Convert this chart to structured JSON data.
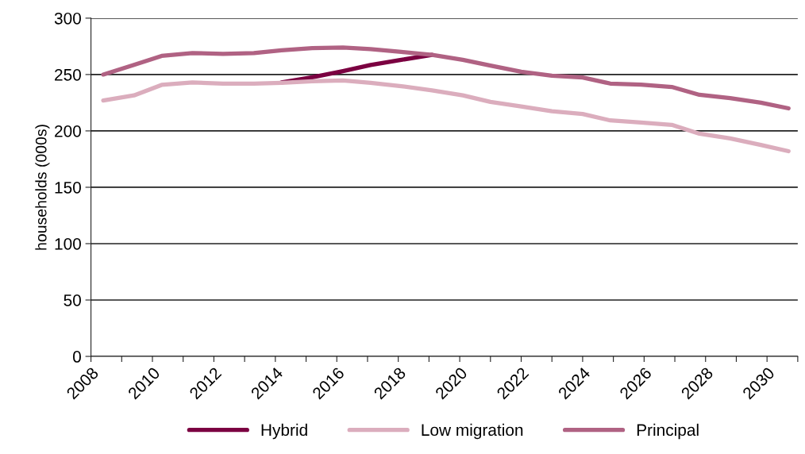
{
  "chart_data": {
    "type": "line",
    "ylabel": "households (000s)",
    "x": [
      2008.4,
      2009.4,
      2010.3,
      2011.3,
      2012.3,
      2013.3,
      2014.2,
      2015.2,
      2016.2,
      2017.1,
      2018.1,
      2019.1,
      2020.1,
      2021.0,
      2022.0,
      2023.0,
      2024.0,
      2024.9,
      2025.9,
      2026.9,
      2027.8,
      2028.8,
      2029.8,
      2030.7
    ],
    "series": [
      {
        "name": "Hybrid",
        "color": "#7b0041",
        "values": [
          null,
          null,
          null,
          null,
          null,
          null,
          243,
          247.5,
          253,
          258.5,
          263,
          267.5,
          null,
          null,
          null,
          null,
          null,
          null,
          null,
          null,
          null,
          null,
          null,
          null
        ]
      },
      {
        "name": "Low migration",
        "color": "#dbadbd",
        "values": [
          227,
          231.5,
          240.8,
          243,
          242,
          242,
          242.7,
          244,
          244.7,
          242.7,
          239.7,
          236,
          231.5,
          225.7,
          221.7,
          217.5,
          215,
          209.3,
          207.5,
          205.4,
          197.5,
          193.3,
          187.5,
          182
        ]
      },
      {
        "name": "Principal",
        "color": "#b06283",
        "values": [
          250,
          258.5,
          266.5,
          269,
          268.4,
          269,
          271.5,
          273.5,
          274,
          272.5,
          270,
          267.5,
          263,
          258,
          252.5,
          249,
          247.4,
          242,
          241,
          239,
          232,
          229,
          225,
          220
        ]
      }
    ],
    "xlim": [
      2008,
      2031
    ],
    "xticks": [
      2008,
      {
        "value": 2009,
        "label": null
      },
      2010,
      {
        "value": 2011,
        "label": null
      },
      2012,
      {
        "value": 2013,
        "label": null
      },
      2014,
      {
        "value": 2015,
        "label": null
      },
      2016,
      {
        "value": 2017,
        "label": null
      },
      2018,
      {
        "value": 2019,
        "label": null
      },
      2020,
      {
        "value": 2021,
        "label": null
      },
      2022,
      {
        "value": 2023,
        "label": null
      },
      2024,
      {
        "value": 2025,
        "label": null
      },
      2026,
      {
        "value": 2027,
        "label": null
      },
      2028,
      {
        "value": 2029,
        "label": null
      },
      2030,
      {
        "value": 2031,
        "label": null
      }
    ],
    "ylim": [
      0,
      300
    ],
    "yticks": [
      0,
      50,
      100,
      150,
      200,
      250,
      300
    ],
    "grid": "y",
    "legend": "bottom",
    "marker": "none",
    "line_style": "solid"
  }
}
